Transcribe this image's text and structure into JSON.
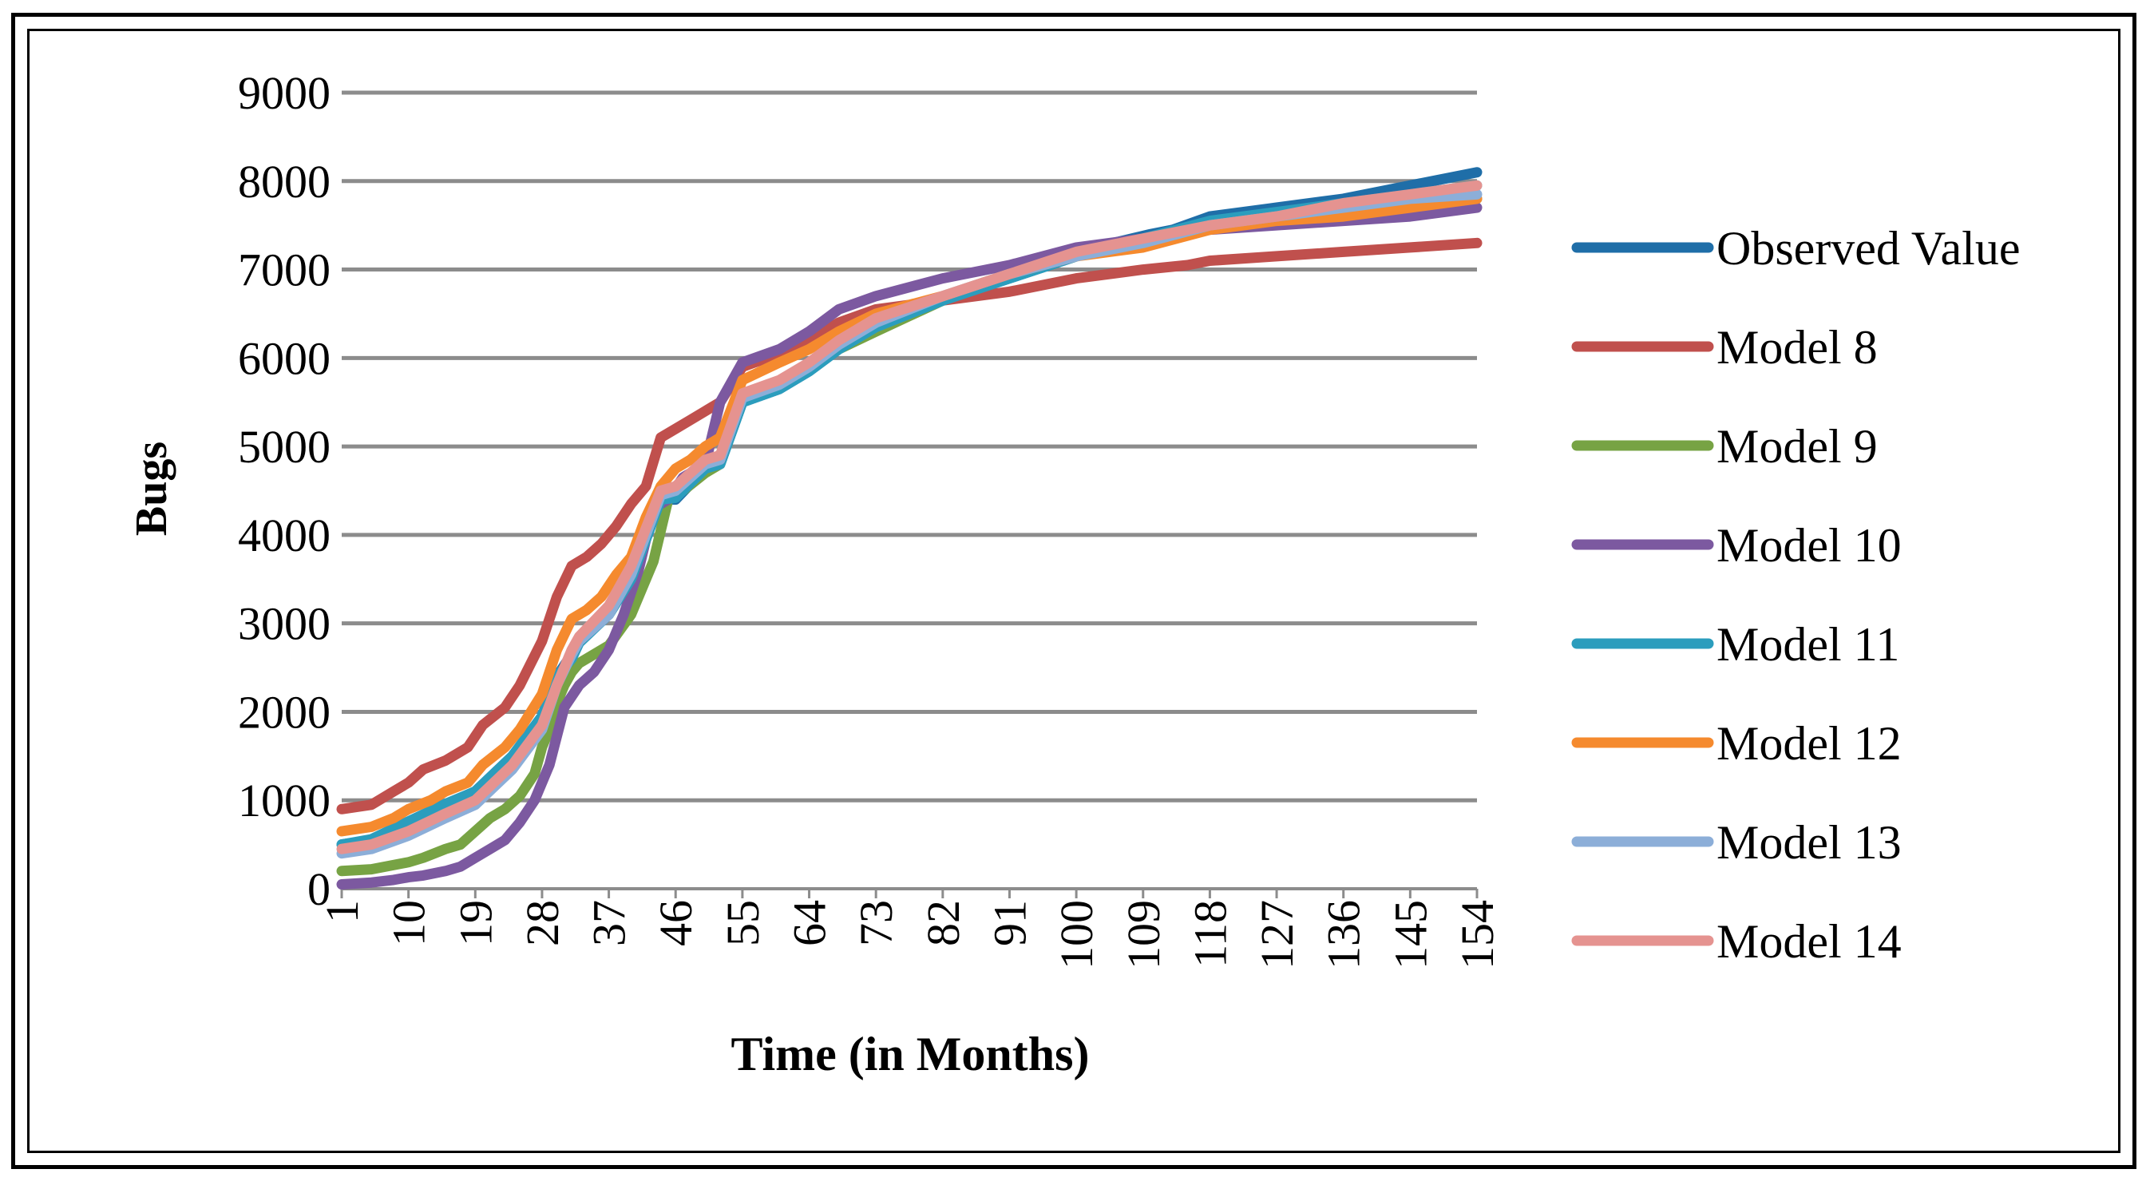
{
  "chart_data": {
    "type": "line",
    "title": "",
    "xlabel": "Time (in Months)",
    "ylabel": "Bugs",
    "ylim": [
      0,
      9000
    ],
    "yticks": [
      "0",
      "1000",
      "2000",
      "3000",
      "4000",
      "5000",
      "6000",
      "7000",
      "8000",
      "9000"
    ],
    "xrange": [
      1,
      154
    ],
    "xticks": [
      "1",
      "10",
      "19",
      "28",
      "37",
      "46",
      "55",
      "64",
      "73",
      "82",
      "91",
      "100",
      "109",
      "118",
      "127",
      "136",
      "145",
      "154"
    ],
    "grid": true,
    "legend": "right",
    "series": [
      {
        "name": "Observed Value",
        "color": "#1f6ea8",
        "x": [
          1,
          5,
          10,
          15,
          19,
          24,
          28,
          30,
          32,
          33,
          37,
          40,
          44,
          46,
          50,
          52,
          55,
          60,
          64,
          68,
          73,
          82,
          91,
          100,
          105,
          110,
          113,
          118,
          127,
          136,
          145,
          154
        ],
        "y": [
          500,
          550,
          750,
          950,
          1100,
          1500,
          1950,
          2400,
          2650,
          2800,
          3100,
          3500,
          4400,
          4400,
          4750,
          4800,
          5500,
          5650,
          5850,
          6100,
          6350,
          6650,
          6900,
          7150,
          7300,
          7400,
          7450,
          7600,
          7700,
          7800,
          7950,
          8100
        ]
      },
      {
        "name": "Model 8",
        "color": "#c0504d",
        "x": [
          1,
          5,
          8,
          10,
          12,
          15,
          18,
          20,
          23,
          25,
          28,
          30,
          32,
          34,
          36,
          38,
          40,
          42,
          44,
          46,
          48,
          50,
          52,
          55,
          60,
          64,
          68,
          73,
          82,
          91,
          100,
          109,
          115,
          118,
          127,
          136,
          145,
          154
        ],
        "y": [
          900,
          950,
          1100,
          1200,
          1350,
          1450,
          1600,
          1850,
          2050,
          2300,
          2800,
          3300,
          3650,
          3750,
          3900,
          4100,
          4350,
          4550,
          5100,
          5200,
          5300,
          5400,
          5500,
          5900,
          6050,
          6200,
          6400,
          6550,
          6650,
          6750,
          6900,
          7000,
          7050,
          7100,
          7150,
          7200,
          7250,
          7300
        ]
      },
      {
        "name": "Model 9",
        "color": "#77a344",
        "x": [
          1,
          5,
          10,
          12,
          15,
          17,
          19,
          21,
          23,
          25,
          27,
          28,
          29,
          30,
          31,
          32,
          33,
          37,
          40,
          43,
          45,
          47,
          50,
          52,
          55,
          60,
          64,
          68,
          73,
          82,
          91,
          100,
          109,
          118,
          127,
          136,
          145,
          154
        ],
        "y": [
          200,
          220,
          300,
          350,
          450,
          500,
          650,
          800,
          900,
          1050,
          1300,
          1600,
          1800,
          2100,
          2300,
          2450,
          2550,
          2750,
          3100,
          3700,
          4400,
          4500,
          4700,
          4800,
          5550,
          5700,
          5900,
          6100,
          6300,
          6650,
          6950,
          7200,
          7300,
          7500,
          7600,
          7700,
          7750,
          7800
        ]
      },
      {
        "name": "Model 10",
        "color": "#7c59a0",
        "x": [
          1,
          5,
          8,
          10,
          12,
          15,
          17,
          19,
          21,
          23,
          25,
          27,
          29,
          31,
          33,
          35,
          37,
          39,
          41,
          43,
          45,
          47,
          50,
          52,
          55,
          60,
          64,
          68,
          73,
          82,
          91,
          100,
          109,
          118,
          127,
          136,
          145,
          154
        ],
        "y": [
          50,
          70,
          100,
          130,
          150,
          200,
          250,
          350,
          450,
          550,
          750,
          1000,
          1400,
          2050,
          2300,
          2450,
          2700,
          3100,
          3600,
          4300,
          4400,
          4650,
          4800,
          5500,
          5950,
          6100,
          6300,
          6550,
          6700,
          6900,
          7050,
          7250,
          7350,
          7450,
          7500,
          7550,
          7600,
          7700
        ]
      },
      {
        "name": "Model 11",
        "color": "#2b9dbd",
        "x": [
          1,
          5,
          10,
          15,
          19,
          24,
          28,
          30,
          32,
          33,
          37,
          40,
          44,
          46,
          50,
          52,
          55,
          60,
          64,
          68,
          73,
          82,
          91,
          100,
          109,
          118,
          127,
          136,
          145,
          154
        ],
        "y": [
          500,
          560,
          760,
          960,
          1100,
          1500,
          1950,
          2400,
          2600,
          2780,
          3100,
          3500,
          4400,
          4420,
          4750,
          4800,
          5500,
          5650,
          5850,
          6100,
          6350,
          6650,
          6900,
          7150,
          7350,
          7550,
          7650,
          7750,
          7850,
          7950
        ]
      },
      {
        "name": "Model 12",
        "color": "#f58a2e",
        "x": [
          1,
          5,
          8,
          10,
          13,
          15,
          18,
          20,
          23,
          25,
          28,
          30,
          32,
          34,
          36,
          38,
          40,
          42,
          44,
          46,
          48,
          50,
          52,
          55,
          60,
          64,
          68,
          73,
          82,
          91,
          100,
          109,
          118,
          127,
          136,
          145,
          154
        ],
        "y": [
          650,
          700,
          800,
          900,
          1000,
          1100,
          1200,
          1400,
          1600,
          1800,
          2200,
          2700,
          3050,
          3150,
          3300,
          3550,
          3750,
          4200,
          4550,
          4750,
          4850,
          5000,
          5100,
          5750,
          5950,
          6100,
          6300,
          6500,
          6700,
          6950,
          7150,
          7250,
          7450,
          7550,
          7600,
          7700,
          7800
        ]
      },
      {
        "name": "Model 13",
        "color": "#8caed8",
        "x": [
          1,
          5,
          10,
          15,
          19,
          24,
          28,
          30,
          32,
          33,
          37,
          40,
          44,
          46,
          50,
          52,
          55,
          60,
          64,
          68,
          73,
          82,
          91,
          100,
          109,
          118,
          127,
          136,
          145,
          154
        ],
        "y": [
          400,
          450,
          600,
          800,
          950,
          1350,
          1800,
          2300,
          2650,
          2800,
          3100,
          3550,
          4450,
          4500,
          4800,
          4850,
          5550,
          5700,
          5900,
          6150,
          6400,
          6700,
          6950,
          7150,
          7300,
          7500,
          7600,
          7700,
          7800,
          7850
        ]
      },
      {
        "name": "Model 14",
        "color": "#e59390",
        "x": [
          1,
          5,
          10,
          15,
          19,
          24,
          28,
          30,
          32,
          33,
          37,
          40,
          44,
          46,
          50,
          52,
          55,
          60,
          64,
          68,
          73,
          82,
          91,
          100,
          109,
          118,
          127,
          136,
          145,
          154
        ],
        "y": [
          450,
          500,
          650,
          850,
          1000,
          1400,
          1850,
          2300,
          2700,
          2850,
          3200,
          3650,
          4500,
          4550,
          4850,
          4900,
          5600,
          5750,
          5950,
          6200,
          6450,
          6700,
          6950,
          7200,
          7350,
          7500,
          7600,
          7750,
          7850,
          7950
        ]
      }
    ]
  }
}
